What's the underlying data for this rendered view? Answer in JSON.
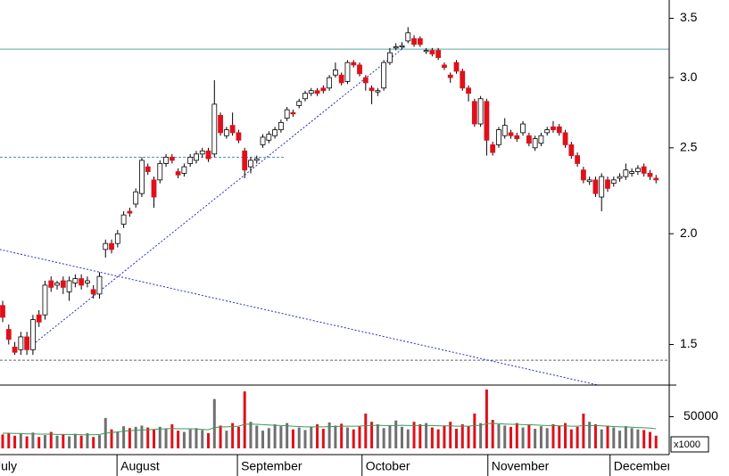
{
  "chart_data": {
    "type": "candlestick",
    "up_color": "#ffffff",
    "down_color": "#e0101a",
    "outline_color": "#000000",
    "log_scale": true,
    "ylim": [
      1.35,
      3.67
    ],
    "yticks": [
      1.5,
      {
        "value": 2,
        "label": "2.0"
      },
      2.5,
      {
        "value": 3,
        "label": "3.0"
      },
      3.5
    ],
    "xticks": [
      {
        "value": -1.9,
        "label": "July"
      },
      {
        "value": 18.9,
        "label": "August"
      },
      {
        "value": 38.8,
        "label": "September"
      },
      {
        "value": 59.4,
        "label": "October"
      },
      {
        "value": 80.2,
        "label": "November"
      },
      {
        "value": 100.4,
        "label": "December"
      }
    ],
    "open": [
      1.66,
      1.56,
      1.49,
      1.48,
      1.53,
      1.48,
      1.62,
      1.62,
      1.77,
      1.75,
      1.77,
      1.72,
      1.76,
      1.78,
      1.76,
      1.73,
      1.71,
      1.92,
      1.95,
      1.95,
      2.05,
      2.12,
      2.16,
      2.22,
      2.38,
      2.3,
      2.3,
      2.4,
      2.44,
      2.35,
      2.34,
      2.4,
      2.42,
      2.46,
      2.48,
      2.46,
      2.72,
      2.58,
      2.65,
      2.6,
      2.48,
      2.38,
      2.42,
      2.52,
      2.55,
      2.58,
      2.62,
      2.7,
      2.74,
      2.79,
      2.84,
      2.88,
      2.9,
      2.92,
      2.92,
      3.02,
      3.02,
      2.97,
      3.12,
      3.1,
      3.0,
      2.92,
      2.89,
      2.92,
      3.12,
      3.24,
      3.25,
      3.3,
      3.32,
      3.32,
      3.21,
      3.22,
      3.22,
      3.1,
      3.02,
      3.12,
      3.05,
      2.92,
      2.82,
      2.66,
      2.82,
      2.52,
      2.52,
      2.58,
      2.6,
      2.58,
      2.6,
      2.58,
      2.5,
      2.53,
      2.6,
      2.64,
      2.64,
      2.6,
      2.52,
      2.45,
      2.36,
      2.29,
      2.3,
      2.2,
      2.3,
      2.28,
      2.31,
      2.32,
      2.34,
      2.35,
      2.38,
      2.34,
      2.31
    ],
    "close": [
      1.61,
      1.52,
      1.47,
      1.53,
      1.48,
      1.6,
      1.59,
      1.75,
      1.74,
      1.76,
      1.74,
      1.77,
      1.78,
      1.75,
      1.77,
      1.71,
      1.79,
      1.95,
      1.92,
      2.0,
      2.1,
      2.11,
      2.23,
      2.42,
      2.35,
      2.2,
      2.4,
      2.44,
      2.42,
      2.33,
      2.38,
      2.44,
      2.46,
      2.48,
      2.43,
      2.8,
      2.6,
      2.62,
      2.6,
      2.55,
      2.36,
      2.42,
      2.43,
      2.57,
      2.59,
      2.62,
      2.67,
      2.76,
      2.73,
      2.82,
      2.88,
      2.9,
      2.88,
      2.9,
      3.0,
      3.06,
      2.96,
      3.12,
      3.1,
      3.03,
      2.96,
      2.9,
      2.9,
      3.12,
      3.2,
      3.25,
      3.26,
      3.37,
      3.27,
      3.27,
      3.22,
      3.19,
      3.16,
      3.08,
      3.0,
      3.05,
      2.92,
      2.88,
      2.66,
      2.84,
      2.55,
      2.47,
      2.62,
      2.65,
      2.58,
      2.56,
      2.66,
      2.53,
      2.56,
      2.58,
      2.62,
      2.62,
      2.6,
      2.52,
      2.45,
      2.4,
      2.3,
      2.3,
      2.22,
      2.32,
      2.25,
      2.3,
      2.32,
      2.36,
      2.35,
      2.37,
      2.34,
      2.32,
      2.3
    ],
    "high": [
      1.68,
      1.58,
      1.51,
      1.55,
      1.55,
      1.62,
      1.64,
      1.77,
      1.79,
      1.77,
      1.79,
      1.79,
      1.8,
      1.8,
      1.79,
      1.75,
      1.81,
      1.97,
      1.97,
      2.02,
      2.12,
      2.14,
      2.25,
      2.44,
      2.4,
      2.32,
      2.42,
      2.46,
      2.46,
      2.37,
      2.4,
      2.46,
      2.48,
      2.5,
      2.5,
      2.98,
      2.74,
      2.64,
      2.74,
      2.62,
      2.5,
      2.44,
      2.45,
      2.59,
      2.61,
      2.64,
      2.69,
      2.78,
      2.76,
      2.84,
      2.9,
      2.92,
      2.92,
      2.94,
      3.02,
      3.12,
      3.04,
      3.14,
      3.14,
      3.12,
      3.02,
      2.94,
      2.92,
      3.14,
      3.24,
      3.28,
      3.29,
      3.42,
      3.35,
      3.34,
      3.24,
      3.24,
      3.24,
      3.12,
      3.04,
      3.14,
      3.07,
      2.94,
      2.84,
      2.86,
      2.84,
      2.54,
      2.64,
      2.7,
      2.62,
      2.6,
      2.68,
      2.6,
      2.58,
      2.6,
      2.64,
      2.68,
      2.66,
      2.62,
      2.54,
      2.47,
      2.38,
      2.32,
      2.32,
      2.34,
      2.32,
      2.32,
      2.34,
      2.4,
      2.37,
      2.39,
      2.4,
      2.36,
      2.33
    ],
    "low": [
      1.59,
      1.5,
      1.46,
      1.46,
      1.46,
      1.46,
      1.57,
      1.6,
      1.72,
      1.73,
      1.71,
      1.68,
      1.74,
      1.73,
      1.74,
      1.69,
      1.69,
      1.88,
      1.9,
      1.93,
      2.03,
      2.09,
      2.14,
      2.2,
      2.33,
      2.14,
      2.28,
      2.38,
      2.4,
      2.31,
      2.32,
      2.38,
      2.4,
      2.44,
      2.41,
      2.44,
      2.58,
      2.56,
      2.58,
      2.53,
      2.31,
      2.34,
      2.4,
      2.5,
      2.53,
      2.56,
      2.6,
      2.68,
      2.71,
      2.77,
      2.82,
      2.86,
      2.86,
      2.88,
      2.9,
      3.0,
      2.94,
      2.95,
      3.08,
      3.01,
      2.9,
      2.8,
      2.86,
      2.9,
      3.1,
      3.22,
      3.23,
      3.28,
      3.25,
      3.25,
      3.19,
      3.17,
      3.14,
      3.06,
      2.96,
      3.03,
      2.9,
      2.82,
      2.64,
      2.64,
      2.45,
      2.45,
      2.5,
      2.56,
      2.56,
      2.54,
      2.58,
      2.51,
      2.48,
      2.51,
      2.58,
      2.6,
      2.58,
      2.5,
      2.43,
      2.38,
      2.28,
      2.27,
      2.2,
      2.12,
      2.23,
      2.26,
      2.29,
      2.3,
      2.32,
      2.33,
      2.32,
      2.3,
      2.28
    ],
    "reference_lines": [
      {
        "value": 3.23,
        "color": "#5aa8a0",
        "style": "solid"
      },
      {
        "value": 2.44,
        "color": "#4a8fc0",
        "style": "dashed",
        "end_index": 46.7
      },
      {
        "value": 1.44,
        "color": "#666666",
        "style": "dashed"
      }
    ],
    "trend_lines": [
      {
        "from": [
          -0.5,
          1.92
        ],
        "to": [
          98.4,
          1.35
        ],
        "color": "#2a2ad0"
      },
      {
        "from": [
          5,
          1.5
        ],
        "to": [
          66.7,
          3.26
        ],
        "color": "#2a2ad0"
      }
    ],
    "volume": {
      "values": [
        22000,
        24000,
        20000,
        23000,
        19000,
        25000,
        18000,
        21000,
        26000,
        20000,
        22000,
        19000,
        23000,
        20000,
        24000,
        18000,
        21000,
        48000,
        30000,
        26000,
        35000,
        32000,
        34000,
        36000,
        33000,
        30000,
        34000,
        31000,
        38000,
        28000,
        26000,
        30000,
        32000,
        29000,
        24000,
        78000,
        36000,
        28000,
        40000,
        34000,
        90000,
        42000,
        36000,
        28000,
        32000,
        38000,
        35000,
        40000,
        30000,
        33000,
        29000,
        34000,
        38000,
        31000,
        41000,
        36000,
        39000,
        33000,
        30000,
        35000,
        55000,
        42000,
        38000,
        32000,
        36000,
        44000,
        34000,
        30000,
        42000,
        38000,
        40000,
        33000,
        30000,
        36000,
        42000,
        31000,
        38000,
        35000,
        55000,
        40000,
        93000,
        45000,
        38000,
        36000,
        34000,
        40000,
        33000,
        37000,
        31000,
        35000,
        32000,
        38000,
        36000,
        40000,
        30000,
        34000,
        55000,
        42000,
        38000,
        30000,
        36000,
        33000,
        28000,
        35000,
        32000,
        30000,
        29000,
        26000,
        20000
      ],
      "average": [
        24000,
        24000,
        23500,
        23500,
        23000,
        23000,
        22500,
        22500,
        22500,
        22000,
        22000,
        22000,
        22000,
        21500,
        21500,
        21500,
        22000,
        24000,
        25000,
        26000,
        27000,
        28000,
        28500,
        29000,
        29500,
        30000,
        30500,
        31000,
        31500,
        31000,
        31000,
        31000,
        30500,
        30000,
        29500,
        33000,
        34000,
        34000,
        34500,
        35000,
        38000,
        38500,
        38000,
        37500,
        37000,
        36500,
        36000,
        35500,
        35000,
        34500,
        34000,
        34000,
        34000,
        34000,
        34500,
        34500,
        35000,
        35000,
        35000,
        35000,
        36000,
        36000,
        36500,
        36000,
        36000,
        36000,
        36500,
        36000,
        36000,
        36000,
        36000,
        36000,
        35500,
        35500,
        35500,
        35000,
        35000,
        35000,
        36000,
        36500,
        39000,
        39500,
        39000,
        38500,
        38000,
        38000,
        37500,
        37500,
        37000,
        36500,
        36000,
        36000,
        35500,
        35500,
        35000,
        35000,
        36000,
        36000,
        36000,
        35500,
        35000,
        34500,
        34000,
        34000,
        33500,
        33000,
        32500,
        32000,
        31000
      ],
      "up_color": "#707070",
      "down_color": "#e0101a",
      "average_color": "#3a9a5a",
      "ylim": [
        0,
        100000
      ],
      "yticks": [
        50000
      ],
      "unit_label": "x1000"
    }
  }
}
